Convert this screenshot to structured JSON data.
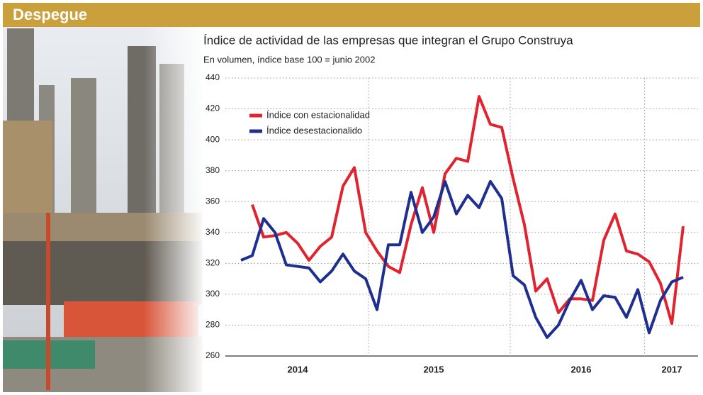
{
  "header": {
    "title": "Despegue"
  },
  "chart_data": {
    "type": "line",
    "title": "Índice de actividad de las empresas que integran el Grupo Construya",
    "subtitle": "En volumen, índice base 100 = junio 2002",
    "categories": [
      null,
      null,
      null,
      null,
      null,
      "2014",
      null,
      null,
      null,
      null,
      null,
      null,
      null,
      null,
      null,
      null,
      null,
      "2015",
      null,
      null,
      null,
      null,
      null,
      null,
      null,
      null,
      null,
      null,
      null,
      null,
      "2016",
      null,
      null,
      null,
      null,
      null,
      null,
      null,
      "2017",
      null
    ],
    "series": [
      {
        "name": "Índice con estacionalidad",
        "color": "#e0232e",
        "values": [
          null,
          358,
          337,
          338,
          340,
          333,
          322,
          331,
          337,
          370,
          382,
          340,
          328,
          318,
          314,
          345,
          369,
          340,
          378,
          388,
          386,
          428,
          410,
          408,
          375,
          345,
          302,
          310,
          288,
          297,
          297,
          296,
          335,
          352,
          328,
          326,
          321,
          307,
          281,
          344
        ]
      },
      {
        "name": "Índice desestacionalido",
        "color": "#1f2f8f",
        "values": [
          322,
          325,
          349,
          340,
          319,
          318,
          317,
          308,
          315,
          326,
          315,
          310,
          290,
          332,
          332,
          366,
          340,
          350,
          373,
          352,
          364,
          356,
          373,
          362,
          312,
          306,
          285,
          272,
          280,
          296,
          309,
          290,
          299,
          298,
          285,
          303,
          275,
          296,
          308,
          311
        ]
      }
    ],
    "ylim": [
      260,
      440
    ],
    "yticks": [
      260,
      280,
      300,
      320,
      340,
      360,
      380,
      400,
      420,
      440
    ],
    "grid": true,
    "legend": "upper-left"
  }
}
